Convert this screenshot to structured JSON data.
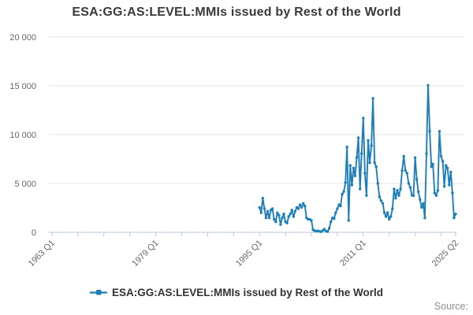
{
  "title": "ESA:GG:AS:LEVEL:MMIs issued by Rest of the World",
  "source_label": "Source:",
  "legend": {
    "label": "ESA:GG:AS:LEVEL:MMIs issued by Rest of the World"
  },
  "colors": {
    "line": "#1e7eba",
    "axis": "#b9c7da",
    "grid": "#e6e6e6",
    "tick_text": "#666666",
    "title_text": "#3a3a3a",
    "source_text": "#8e8e8e"
  },
  "chart_data": {
    "type": "line",
    "title": "ESA:GG:AS:LEVEL:MMIs issued by Rest of the World",
    "legend_position": "bottom",
    "grid": "horizontal-only",
    "y_axis": {
      "range": [
        0,
        20000
      ],
      "ticks": [
        {
          "value": 0,
          "label": "0"
        },
        {
          "value": 5000,
          "label": "5 000"
        },
        {
          "value": 10000,
          "label": "10 000"
        },
        {
          "value": 15000,
          "label": "15 000"
        },
        {
          "value": 20000,
          "label": "20 000"
        }
      ]
    },
    "x_axis": {
      "total_quarters": 249,
      "minor_tick_every_quarters": 16,
      "labeled_ticks": [
        {
          "label": "1963 Q1",
          "quarter": 0
        },
        {
          "label": "1979 Q1",
          "quarter": 64
        },
        {
          "label": "1995 Q1",
          "quarter": 128
        },
        {
          "label": "2011 Q1",
          "quarter": 192
        },
        {
          "label": "2025 Q2",
          "quarter": 249
        }
      ]
    },
    "series": [
      {
        "name": "ESA:GG:AS:LEVEL:MMIs issued by Rest of the World",
        "frequency": "quarterly",
        "start_period": "1995 Q1",
        "end_period": "2025 Q2",
        "start_quarter_offset": 128,
        "values": [
          2550,
          2000,
          3500,
          2420,
          1475,
          2150,
          1475,
          2280,
          2420,
          1340,
          1070,
          2000,
          1750,
          800,
          1475,
          1880,
          1070,
          940,
          1610,
          1880,
          2280,
          1610,
          2150,
          2555,
          2420,
          2820,
          2555,
          2960,
          2690,
          1475,
          1340,
          1340,
          1210,
          270,
          160,
          110,
          150,
          100,
          60,
          190,
          320,
          110,
          80,
          400,
          1070,
          1475,
          1400,
          2000,
          2420,
          2820,
          2690,
          3900,
          4170,
          5100,
          8730,
          1210,
          6850,
          4840,
          6580,
          5780,
          7660,
          9680,
          4435,
          8065,
          11690,
          6050,
          3765,
          9410,
          7120,
          8870,
          13710,
          7120,
          6720,
          5000,
          3630,
          3230,
          2960,
          2015,
          1610,
          2015,
          1340,
          1610,
          2400,
          4435,
          3495,
          4300,
          3765,
          4435,
          6320,
          7800,
          6320,
          6050,
          5000,
          4600,
          3800,
          3750,
          7650,
          5400,
          4150,
          3350,
          2550,
          2960,
          1475,
          8065,
          15050,
          10350,
          6720,
          6990,
          4030,
          3765,
          4300,
          10350,
          7800,
          7260,
          4700,
          6850,
          6580,
          4840,
          6180,
          4030,
          1475,
          1880
        ]
      }
    ]
  }
}
